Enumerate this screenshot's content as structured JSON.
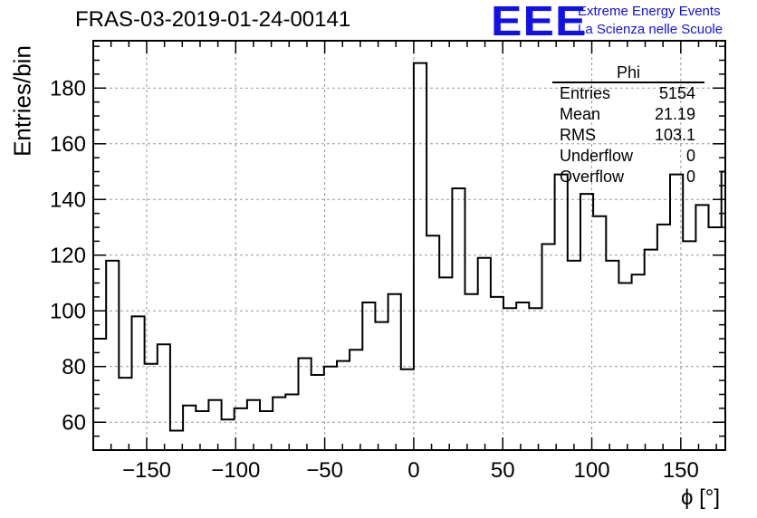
{
  "title": "FRAS-03-2019-01-24-00141",
  "logo": {
    "mark": "EEE",
    "line1": "Extreme Energy Events",
    "line2": "La Scienza nelle Scuole",
    "color": "#1010e8"
  },
  "stats": {
    "name": "Phi",
    "rows": [
      {
        "label": "Entries",
        "value": "5154"
      },
      {
        "label": "Mean",
        "value": "21.19"
      },
      {
        "label": "RMS",
        "value": "103.1"
      },
      {
        "label": "Underflow",
        "value": "0"
      },
      {
        "label": "Overflow",
        "value": "0"
      }
    ]
  },
  "chart_data": {
    "type": "bar",
    "style": "step-histogram",
    "title": "FRAS-03-2019-01-24-00141",
    "xlabel": "ϕ [°]",
    "ylabel": "Entries/bin",
    "xlim": [
      -180,
      175
    ],
    "ylim": [
      50,
      197
    ],
    "bin_width": 7.2,
    "x_ticks": [
      -150,
      -100,
      -50,
      0,
      50,
      100,
      150
    ],
    "x_tick_labels": [
      "−150",
      "−100",
      "−50",
      "0",
      "50",
      "100",
      "150"
    ],
    "y_ticks": [
      60,
      80,
      100,
      120,
      140,
      160,
      180
    ],
    "grid": true,
    "line_color": "#000000",
    "values": [
      90,
      118,
      76,
      98,
      81,
      88,
      57,
      66,
      64,
      68,
      61,
      65,
      68,
      64,
      69,
      70,
      83,
      77,
      80,
      82,
      86,
      103,
      96,
      106,
      79,
      189,
      127,
      112,
      144,
      106,
      119,
      105,
      101,
      103,
      101,
      124,
      149,
      118,
      142,
      134,
      118,
      110,
      113,
      122,
      131,
      149,
      125,
      138,
      130,
      150
    ]
  }
}
